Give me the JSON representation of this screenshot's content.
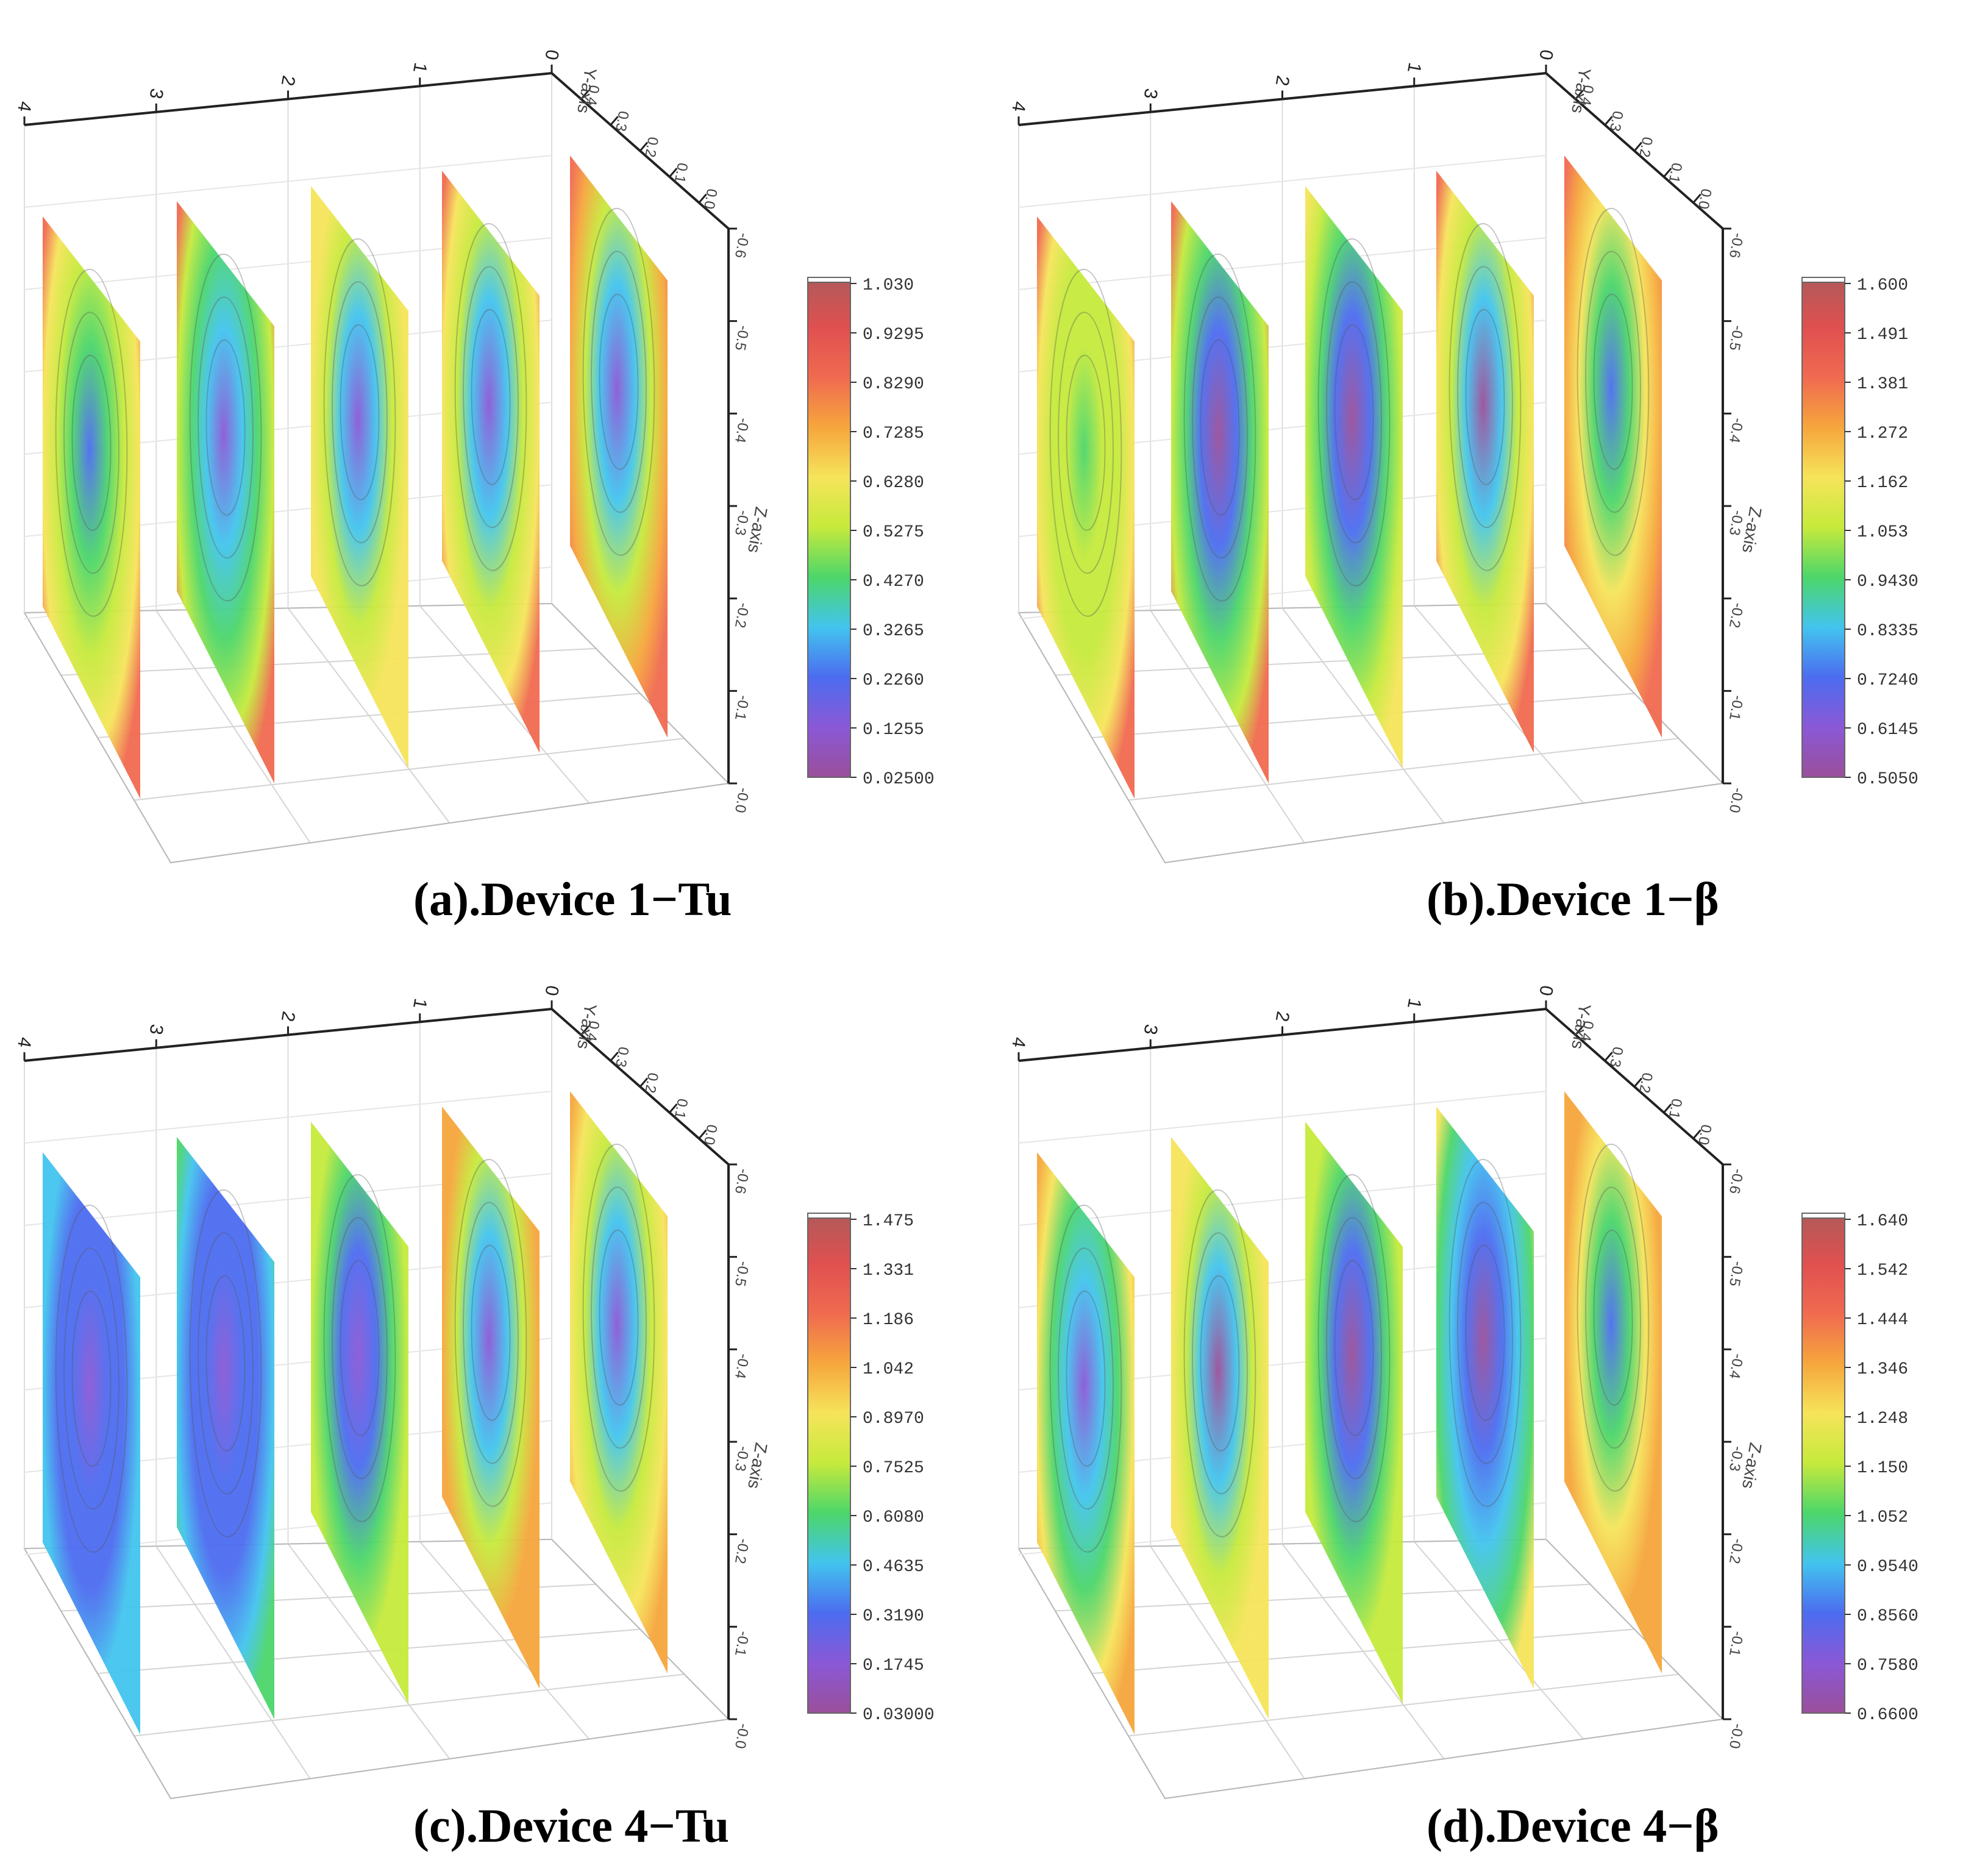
{
  "chart_data": [
    {
      "id": "a",
      "type": "heatmap",
      "title": "(a).Device 1−Tu",
      "x_axis": {
        "label": "",
        "ticks": [
          "4",
          "3",
          "2",
          "1",
          "0"
        ]
      },
      "y_axis": {
        "label": "Y-axis",
        "ticks": [
          "0.4",
          "0.3",
          "0.2",
          "0.1",
          "0.0"
        ]
      },
      "z_axis": {
        "label": "Z-axis",
        "ticks": [
          "-0.6",
          "-0.5",
          "-0.4",
          "-0.3",
          "-0.2",
          "-0.1",
          "-0.0"
        ]
      },
      "colorbar": {
        "min": 0.025,
        "max": 1.03,
        "ticks": [
          "1.030",
          "0.9295",
          "0.8290",
          "0.7285",
          "0.6280",
          "0.5275",
          "0.4270",
          "0.3265",
          "0.2260",
          "0.1255",
          "0.02500"
        ]
      },
      "slices": [
        {
          "position": 4,
          "core_value": 0.26,
          "edge_value": 0.62,
          "bottom_value": 0.82
        },
        {
          "position": 3,
          "core_value": 0.16,
          "edge_value": 0.55,
          "bottom_value": 0.82
        },
        {
          "position": 2,
          "core_value": 0.14,
          "edge_value": 0.62,
          "bottom_value": 0.6
        },
        {
          "position": 1,
          "core_value": 0.12,
          "edge_value": 0.62,
          "bottom_value": 0.83
        },
        {
          "position": 0,
          "core_value": 0.12,
          "edge_value": 0.72,
          "bottom_value": 0.85
        }
      ]
    },
    {
      "id": "b",
      "type": "heatmap",
      "title": "(b).Device 1−β",
      "x_axis": {
        "label": "",
        "ticks": [
          "4",
          "3",
          "2",
          "1",
          "0"
        ]
      },
      "y_axis": {
        "label": "Y-axis",
        "ticks": [
          "0.4",
          "0.3",
          "0.2",
          "0.1",
          "0.0"
        ]
      },
      "z_axis": {
        "label": "Z-axis",
        "ticks": [
          "-0.6",
          "-0.5",
          "-0.4",
          "-0.3",
          "-0.2",
          "-0.1",
          "-0.0"
        ]
      },
      "colorbar": {
        "min": 0.505,
        "max": 1.6,
        "ticks": [
          "1.600",
          "1.491",
          "1.381",
          "1.272",
          "1.162",
          "1.053",
          "0.9430",
          "0.8335",
          "0.7240",
          "0.6145",
          "0.5050"
        ]
      },
      "slices": [
        {
          "position": 4,
          "core_value": 0.95,
          "edge_value": 1.12,
          "bottom_value": 1.38
        },
        {
          "position": 3,
          "core_value": 0.52,
          "edge_value": 1.1,
          "bottom_value": 1.33
        },
        {
          "position": 2,
          "core_value": 0.52,
          "edge_value": 1.1,
          "bottom_value": 1.12
        },
        {
          "position": 1,
          "core_value": 0.52,
          "edge_value": 1.2,
          "bottom_value": 1.35
        },
        {
          "position": 0,
          "core_value": 0.7,
          "edge_value": 1.32,
          "bottom_value": 1.4
        }
      ]
    },
    {
      "id": "c",
      "type": "heatmap",
      "title": "(c).Device 4−Tu",
      "x_axis": {
        "label": "",
        "ticks": [
          "4",
          "3",
          "2",
          "1",
          "0"
        ]
      },
      "y_axis": {
        "label": "Y-axis",
        "ticks": [
          "0.4",
          "0.3",
          "0.2",
          "0.1",
          "0.0"
        ]
      },
      "z_axis": {
        "label": "Z-axis",
        "ticks": [
          "-0.6",
          "-0.5",
          "-0.4",
          "-0.3",
          "-0.2",
          "-0.1",
          "-0.0"
        ]
      },
      "colorbar": {
        "min": 0.03,
        "max": 1.475,
        "ticks": [
          "1.475",
          "1.331",
          "1.186",
          "1.042",
          "0.8970",
          "0.7525",
          "0.6080",
          "0.4635",
          "0.3190",
          "0.1745",
          "0.03000"
        ]
      },
      "slices": [
        {
          "position": 4,
          "core_value": 0.2,
          "edge_value": 0.4,
          "bottom_value": 0.45
        },
        {
          "position": 3,
          "core_value": 0.18,
          "edge_value": 0.42,
          "bottom_value": 0.6
        },
        {
          "position": 2,
          "core_value": 0.15,
          "edge_value": 0.7,
          "bottom_value": 0.8
        },
        {
          "position": 1,
          "core_value": 0.15,
          "edge_value": 1.0,
          "bottom_value": 1.1
        },
        {
          "position": 0,
          "core_value": 0.2,
          "edge_value": 0.9,
          "bottom_value": 1.1
        }
      ]
    },
    {
      "id": "d",
      "type": "heatmap",
      "title": "(d).Device 4−β",
      "x_axis": {
        "label": "",
        "ticks": [
          "4",
          "3",
          "2",
          "1",
          "0"
        ]
      },
      "y_axis": {
        "label": "Y-axis",
        "ticks": [
          "0.4",
          "0.3",
          "0.2",
          "0.1",
          "0.0"
        ]
      },
      "z_axis": {
        "label": "Z-axis",
        "ticks": [
          "-0.6",
          "-0.5",
          "-0.4",
          "-0.3",
          "-0.2",
          "-0.1",
          "-0.0"
        ]
      },
      "colorbar": {
        "min": 0.66,
        "max": 1.64,
        "ticks": [
          "1.640",
          "1.542",
          "1.444",
          "1.346",
          "1.248",
          "1.150",
          "1.052",
          "0.9540",
          "0.8560",
          "0.7580",
          "0.6600"
        ]
      },
      "slices": [
        {
          "position": 4,
          "core_value": 0.78,
          "edge_value": 1.2,
          "bottom_value": 1.3
        },
        {
          "position": 3,
          "core_value": 0.7,
          "edge_value": 1.25,
          "bottom_value": 1.2
        },
        {
          "position": 2,
          "core_value": 0.66,
          "edge_value": 1.15,
          "bottom_value": 1.15
        },
        {
          "position": 1,
          "core_value": 0.66,
          "edge_value": 1.05,
          "bottom_value": 1.25
        },
        {
          "position": 0,
          "core_value": 0.9,
          "edge_value": 1.3,
          "bottom_value": 1.35
        }
      ]
    }
  ]
}
